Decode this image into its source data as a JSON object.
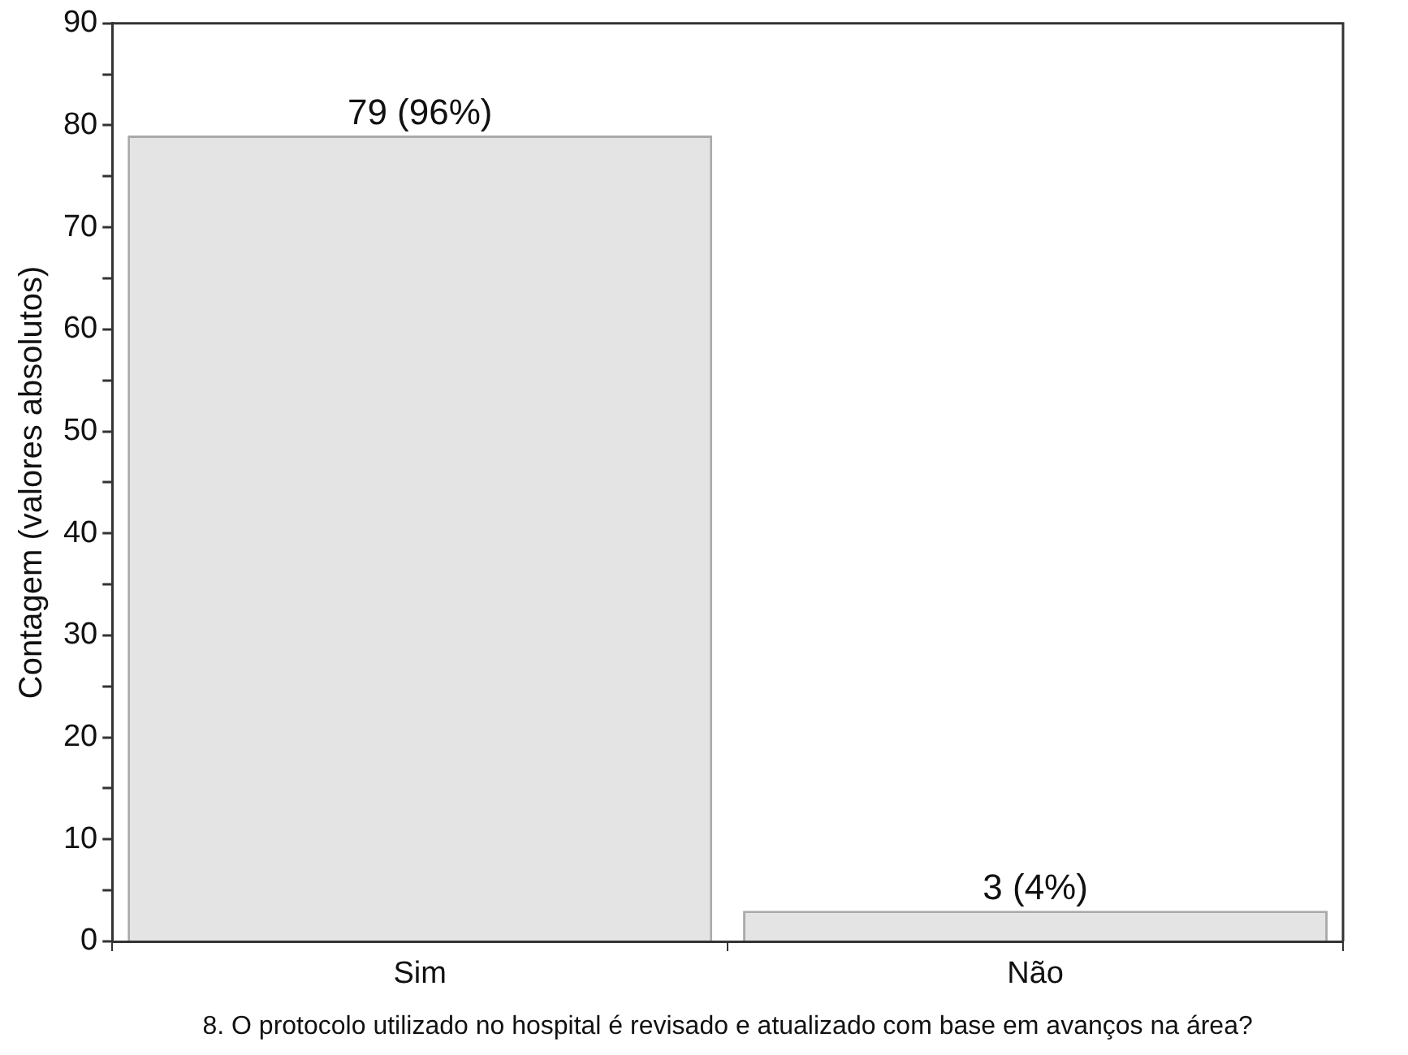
{
  "chart_data": {
    "type": "bar",
    "xlabel": "8. O protocolo utilizado no hospital é revisado e atualizado com base em avanços na área?",
    "ylabel": "Contagem (valores absolutos)",
    "categories": [
      "Sim",
      "Não"
    ],
    "values": [
      79,
      3
    ],
    "color": "#e4e4e4",
    "value_labels": [
      "79 (96%)",
      "3 (4%)"
    ],
    "ylim": [
      0,
      90
    ],
    "yticks": [
      0,
      {
        "value": 5,
        "label": null
      },
      10,
      {
        "value": 15,
        "label": null
      },
      20,
      {
        "value": 25,
        "label": null
      },
      30,
      {
        "value": 35,
        "label": null
      },
      40,
      {
        "value": 45,
        "label": null
      },
      50,
      {
        "value": 55,
        "label": null
      },
      60,
      {
        "value": 65,
        "label": null
      },
      70,
      {
        "value": 75,
        "label": null
      },
      80,
      {
        "value": 85,
        "label": null
      },
      90
    ],
    "grid": false,
    "legend": false
  }
}
